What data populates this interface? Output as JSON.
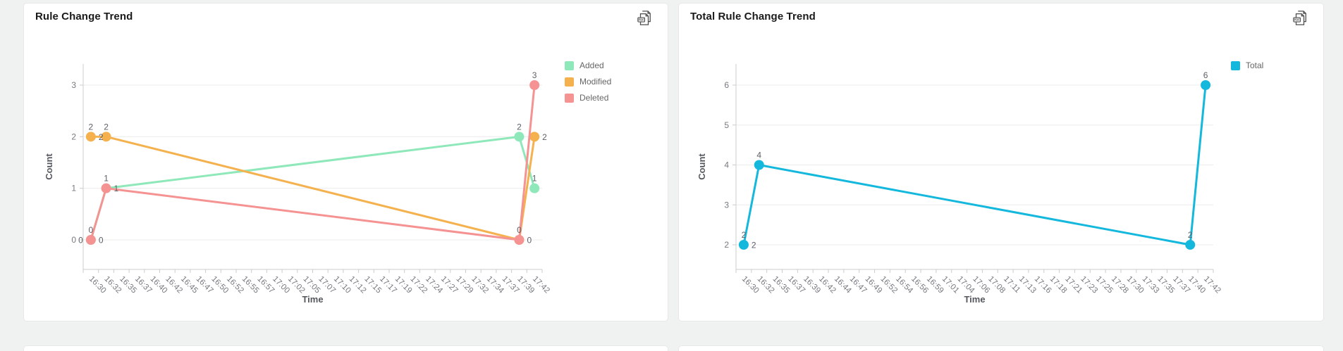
{
  "page": {
    "background": "#f0f1f1"
  },
  "icons": {
    "pdf_label": "PDF",
    "export_icon": "pdf-export-icon"
  },
  "colors": {
    "added": "#8fe8ba",
    "modified": "#f5b14e",
    "deleted": "#f59292",
    "total": "#15b8dd",
    "grid": "#ececec",
    "axis": "#cccccc"
  },
  "chart_data": [
    {
      "type": "line",
      "title": "Rule Change Trend",
      "xlabel": "Time",
      "ylabel": "Count",
      "grid": true,
      "legend_position": "right-top",
      "yticks": [
        0,
        1,
        2,
        3
      ],
      "ylim": [
        -0.5,
        3.5
      ],
      "categories": [
        "16:30",
        "16:32",
        "16:35",
        "16:37",
        "16:40",
        "16:42",
        "16:45",
        "16:47",
        "16:50",
        "16:52",
        "16:55",
        "16:57",
        "17:00",
        "17:02",
        "17:05",
        "17:07",
        "17:10",
        "17:12",
        "17:15",
        "17:17",
        "17:19",
        "17:22",
        "17:24",
        "17:27",
        "17:29",
        "17:32",
        "17:34",
        "17:37",
        "17:39",
        "17:42"
      ],
      "series": [
        {
          "name": "Added",
          "color": "#8fe8ba",
          "points": [
            {
              "x": "16:30",
              "y": 0,
              "labels": [
                "left"
              ]
            },
            {
              "x": "16:32",
              "y": 1,
              "labels": [
                "right"
              ]
            },
            {
              "x": "17:39",
              "y": 2,
              "labels": [
                "top"
              ]
            },
            {
              "x": "17:42",
              "y": 1,
              "labels": [
                "top"
              ]
            }
          ]
        },
        {
          "name": "Modified",
          "color": "#f5b14e",
          "points": [
            {
              "x": "16:30",
              "y": 2,
              "labels": [
                "top",
                "right"
              ]
            },
            {
              "x": "16:32",
              "y": 2,
              "labels": [
                "top"
              ]
            },
            {
              "x": "17:39",
              "y": 0,
              "labels": [
                "right"
              ]
            },
            {
              "x": "17:42",
              "y": 2,
              "labels": [
                "right"
              ]
            }
          ]
        },
        {
          "name": "Deleted",
          "color": "#f59292",
          "points": [
            {
              "x": "16:30",
              "y": 0,
              "labels": [
                "top",
                "right"
              ]
            },
            {
              "x": "16:32",
              "y": 1,
              "labels": [
                "top"
              ]
            },
            {
              "x": "17:39",
              "y": 0,
              "labels": [
                "top"
              ]
            },
            {
              "x": "17:42",
              "y": 3,
              "labels": [
                "top"
              ]
            }
          ]
        }
      ]
    },
    {
      "type": "line",
      "title": "Total Rule Change Trend",
      "xlabel": "Time",
      "ylabel": "Count",
      "grid": true,
      "legend_position": "right-top",
      "yticks": [
        2,
        3,
        4,
        5,
        6
      ],
      "ylim": [
        1.4,
        6.6
      ],
      "categories": [
        "16:30",
        "16:32",
        "16:35",
        "16:37",
        "16:39",
        "16:42",
        "16:44",
        "16:47",
        "16:49",
        "16:52",
        "16:54",
        "16:56",
        "16:59",
        "17:01",
        "17:04",
        "17:06",
        "17:08",
        "17:11",
        "17:13",
        "17:16",
        "17:18",
        "17:21",
        "17:23",
        "17:25",
        "17:28",
        "17:30",
        "17:33",
        "17:35",
        "17:37",
        "17:40",
        "17:42"
      ],
      "series": [
        {
          "name": "Total",
          "color": "#15b8dd",
          "points": [
            {
              "x": "16:30",
              "y": 2,
              "labels": [
                "top",
                "right"
              ]
            },
            {
              "x": "16:32",
              "y": 4,
              "labels": [
                "top"
              ]
            },
            {
              "x": "17:40",
              "y": 2,
              "labels": [
                "top"
              ]
            },
            {
              "x": "17:42",
              "y": 6,
              "labels": [
                "top"
              ]
            }
          ]
        }
      ]
    }
  ]
}
